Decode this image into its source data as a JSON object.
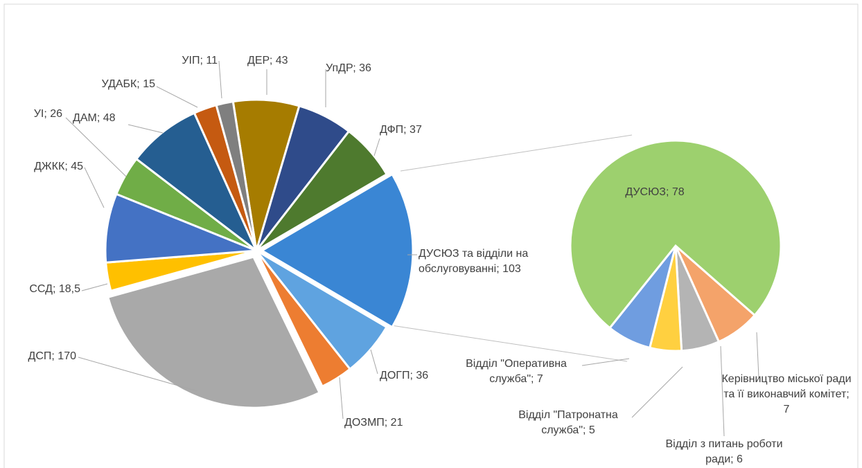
{
  "chart_data": [
    {
      "type": "pie",
      "values": [
        43,
        36,
        37,
        103,
        36,
        21,
        170,
        18.5,
        45,
        26,
        48,
        15,
        11
      ],
      "value_labels": [
        "ДЕР; 43",
        "УпДР; 36",
        "ДФП; 37",
        "ДУСЮЗ та відділи на обслуговуванні; 103",
        "ДОГП; 36",
        "ДОЗМП; 21",
        "ДСП; 170",
        "ССД; 18,5",
        "ДЖКК; 45",
        "УІ; 26",
        "ДАМ; 48",
        "УДАБК; 15",
        "УІП; 11"
      ],
      "colors": [
        "#a67c00",
        "#2f4b8a",
        "#4e7a2e",
        "#3a86d4",
        "#5fa3e0",
        "#ed7d31",
        "#a9a9a9",
        "#ffc000",
        "#4472c4",
        "#70ad47",
        "#255e91",
        "#c55a11",
        "#7f7f7f"
      ]
    },
    {
      "type": "pie",
      "values": [
        7,
        6,
        5,
        7,
        78
      ],
      "value_labels": [
        "Керівництво міської ради та її виконавчий комітет; 7",
        "Відділ з питань роботи ради; 6",
        "Відділ \"Патронатна служба\"; 5",
        "Відділ \"Оперативна служба\"; 7",
        "ДУСЮЗ; 78"
      ],
      "colors": [
        "#f4a36a",
        "#b4b4b4",
        "#ffd040",
        "#6f9de0",
        "#9dd06e"
      ]
    }
  ]
}
